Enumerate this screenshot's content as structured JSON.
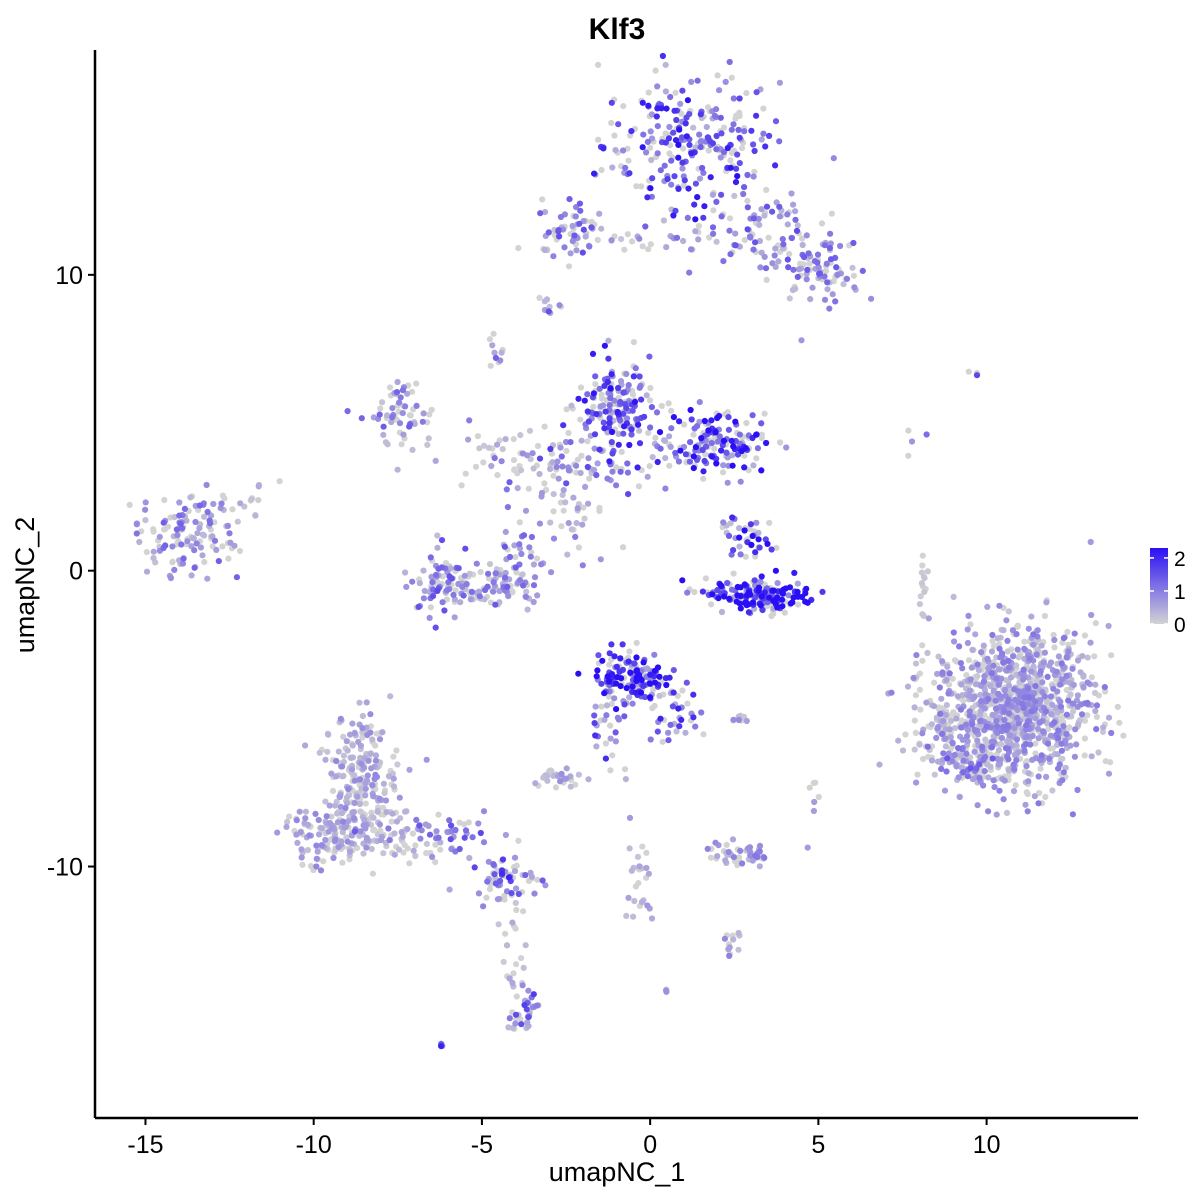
{
  "chart_data": {
    "type": "scatter",
    "title": "Klf3",
    "xlabel": "umapNC_1",
    "ylabel": "umapNC_2",
    "xlim": [
      -16.5,
      14.5
    ],
    "ylim": [
      -18.5,
      17.6
    ],
    "x_ticks": [
      -15,
      -10,
      -5,
      0,
      5,
      10
    ],
    "y_ticks": [
      -10,
      0,
      10
    ],
    "x_tick_labels": [
      "-15",
      "-10",
      "-5",
      "0",
      "5",
      "10"
    ],
    "y_tick_labels": [
      "-10",
      "0",
      "10"
    ],
    "grid": false,
    "legend": {
      "placement": "right",
      "type": "colorbar",
      "min": 0,
      "max": 2.3,
      "ticks": [
        0,
        1,
        2
      ],
      "tick_labels": [
        "0",
        "1",
        "2"
      ],
      "color_low": "#d3d3d3",
      "color_high": "#2a0ff5"
    },
    "clusters": [
      {
        "cx": 1.2,
        "cy": 14.4,
        "sx": 1.3,
        "sy": 1.2,
        "n": 260,
        "expr": 1.3
      },
      {
        "cx": 3.2,
        "cy": 11.6,
        "sx": 0.9,
        "sy": 0.6,
        "n": 70,
        "expr": 0.9
      },
      {
        "cx": 4.9,
        "cy": 10.2,
        "sx": 0.7,
        "sy": 0.6,
        "n": 90,
        "expr": 0.8
      },
      {
        "cx": -2.4,
        "cy": 11.6,
        "sx": 0.55,
        "sy": 0.45,
        "n": 50,
        "expr": 0.9
      },
      {
        "cx": -0.2,
        "cy": 11.2,
        "sx": 1.5,
        "sy": 0.25,
        "n": 30,
        "expr": 0.5
      },
      {
        "cx": -3.0,
        "cy": 8.9,
        "sx": 0.15,
        "sy": 0.2,
        "n": 10,
        "expr": 0.9
      },
      {
        "cx": -4.6,
        "cy": 7.3,
        "sx": 0.2,
        "sy": 0.3,
        "n": 10,
        "expr": 0.8
      },
      {
        "cx": -13.8,
        "cy": 1.3,
        "sx": 0.75,
        "sy": 0.7,
        "n": 130,
        "expr": 0.8
      },
      {
        "cx": -11.8,
        "cy": 2.3,
        "sx": 0.3,
        "sy": 0.6,
        "n": 12,
        "expr": 0.3
      },
      {
        "cx": -7.3,
        "cy": 5.3,
        "sx": 0.45,
        "sy": 0.6,
        "n": 60,
        "expr": 0.8
      },
      {
        "cx": -1.0,
        "cy": 5.4,
        "sx": 0.6,
        "sy": 0.8,
        "n": 170,
        "expr": 1.3
      },
      {
        "cx": 1.9,
        "cy": 4.3,
        "sx": 0.75,
        "sy": 0.5,
        "n": 160,
        "expr": 1.5
      },
      {
        "cx": -1.8,
        "cy": 3.6,
        "sx": 1.5,
        "sy": 0.6,
        "n": 60,
        "expr": 1.0
      },
      {
        "cx": -3.8,
        "cy": 3.9,
        "sx": 1.6,
        "sy": 0.6,
        "n": 45,
        "expr": 0.6
      },
      {
        "cx": -2.6,
        "cy": 2.4,
        "sx": 0.5,
        "sy": 0.7,
        "n": 30,
        "expr": 0.4
      },
      {
        "cx": -6.1,
        "cy": -0.3,
        "sx": 0.45,
        "sy": 0.6,
        "n": 70,
        "expr": 0.9
      },
      {
        "cx": -5.1,
        "cy": -0.6,
        "sx": 0.9,
        "sy": 0.35,
        "n": 70,
        "expr": 0.7
      },
      {
        "cx": -3.9,
        "cy": 0.0,
        "sx": 0.35,
        "sy": 0.7,
        "n": 50,
        "expr": 0.8
      },
      {
        "cx": -2.3,
        "cy": 1.1,
        "sx": 0.6,
        "sy": 0.5,
        "n": 12,
        "expr": 0.7
      },
      {
        "cx": 3.5,
        "cy": -0.9,
        "sx": 0.65,
        "sy": 0.25,
        "n": 140,
        "expr": 2.0
      },
      {
        "cx": 2.3,
        "cy": -0.7,
        "sx": 0.6,
        "sy": 0.25,
        "n": 40,
        "expr": 1.6
      },
      {
        "cx": 3.1,
        "cy": 1.0,
        "sx": 0.3,
        "sy": 0.4,
        "n": 30,
        "expr": 1.5
      },
      {
        "cx": 2.4,
        "cy": 1.2,
        "sx": 0.15,
        "sy": 0.3,
        "n": 10,
        "expr": 1.2
      },
      {
        "cx": -0.6,
        "cy": -3.6,
        "sx": 0.5,
        "sy": 0.45,
        "n": 150,
        "expr": 1.7
      },
      {
        "cx": 0.8,
        "cy": -4.6,
        "sx": 0.45,
        "sy": 0.6,
        "n": 40,
        "expr": 1.2
      },
      {
        "cx": -1.3,
        "cy": -5.8,
        "sx": 0.25,
        "sy": 0.9,
        "n": 25,
        "expr": 1.1
      },
      {
        "cx": 10.8,
        "cy": -4.6,
        "sx": 1.2,
        "sy": 1.3,
        "n": 1100,
        "expr": 0.6
      },
      {
        "cx": 8.6,
        "cy": -5.1,
        "sx": 0.45,
        "sy": 0.45,
        "n": 40,
        "expr": 0.5
      },
      {
        "cx": 9.5,
        "cy": -6.5,
        "sx": 0.6,
        "sy": 0.35,
        "n": 60,
        "expr": 0.8
      },
      {
        "cx": 8.1,
        "cy": -0.4,
        "sx": 0.1,
        "sy": 0.7,
        "n": 14,
        "expr": 0.1
      },
      {
        "cx": 7.9,
        "cy": 4.6,
        "sx": 0.15,
        "sy": 0.3,
        "n": 4,
        "expr": 0.8
      },
      {
        "cx": 9.6,
        "cy": 6.6,
        "sx": 0.1,
        "sy": 0.1,
        "n": 4,
        "expr": 1.4
      },
      {
        "cx": -8.6,
        "cy": -6.7,
        "sx": 0.55,
        "sy": 0.9,
        "n": 170,
        "expr": 0.5
      },
      {
        "cx": -9.7,
        "cy": -9.0,
        "sx": 0.6,
        "sy": 0.5,
        "n": 110,
        "expr": 0.5
      },
      {
        "cx": -8.3,
        "cy": -8.4,
        "sx": 0.65,
        "sy": 0.6,
        "n": 100,
        "expr": 0.4
      },
      {
        "cx": -6.4,
        "cy": -9.1,
        "sx": 1.0,
        "sy": 0.4,
        "n": 70,
        "expr": 0.9
      },
      {
        "cx": -4.4,
        "cy": -10.4,
        "sx": 0.5,
        "sy": 0.4,
        "n": 55,
        "expr": 1.2
      },
      {
        "cx": -4.1,
        "cy": -12.6,
        "sx": 0.25,
        "sy": 1.0,
        "n": 25,
        "expr": 0.3
      },
      {
        "cx": -3.7,
        "cy": -14.8,
        "sx": 0.2,
        "sy": 0.5,
        "n": 35,
        "expr": 1.0
      },
      {
        "cx": -2.7,
        "cy": -7.0,
        "sx": 0.35,
        "sy": 0.2,
        "n": 30,
        "expr": 0.5
      },
      {
        "cx": 2.7,
        "cy": -9.6,
        "sx": 0.6,
        "sy": 0.2,
        "n": 50,
        "expr": 0.6
      },
      {
        "cx": -0.4,
        "cy": -10.4,
        "sx": 0.3,
        "sy": 0.9,
        "n": 25,
        "expr": 0.4
      },
      {
        "cx": 2.3,
        "cy": -12.6,
        "sx": 0.25,
        "sy": 0.2,
        "n": 12,
        "expr": 0.6
      },
      {
        "cx": 2.7,
        "cy": -5.0,
        "sx": 0.2,
        "sy": 0.1,
        "n": 8,
        "expr": 0.6
      },
      {
        "cx": 4.9,
        "cy": -7.3,
        "sx": 0.1,
        "sy": 0.3,
        "n": 6,
        "expr": 0.6
      },
      {
        "cx": 0.5,
        "cy": -14.2,
        "sx": 0.05,
        "sy": 0.05,
        "n": 3,
        "expr": 1.2
      },
      {
        "cx": -6.2,
        "cy": -16.0,
        "sx": 0.05,
        "sy": 0.05,
        "n": 3,
        "expr": 1.2
      }
    ]
  }
}
